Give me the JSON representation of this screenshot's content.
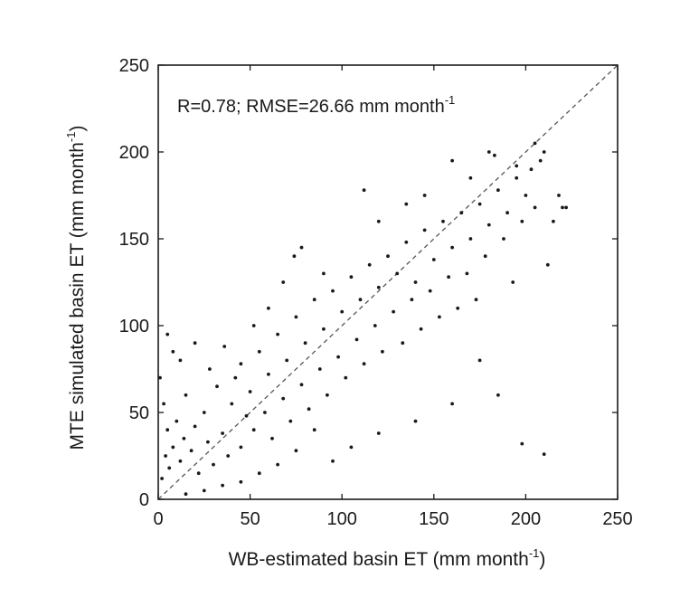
{
  "chart_data": {
    "type": "scatter",
    "xlabel": "WB-estimated basin ET (mm month",
    "xlabel_sup": "-1",
    "xlabel_close": ")",
    "ylabel": "MTE simulated basin ET (mm month",
    "ylabel_sup": "-1",
    "ylabel_close": ")",
    "annotation": "R=0.78;  RMSE=26.66 mm month",
    "annotation_sup": "-1",
    "xlim": [
      0,
      250
    ],
    "ylim": [
      0,
      250
    ],
    "x_ticks": [
      "0",
      "50",
      "100",
      "150",
      "200",
      "250"
    ],
    "y_ticks": [
      "0",
      "50",
      "100",
      "150",
      "200",
      "250"
    ],
    "reference_line": "1:1 dashed",
    "grid": false,
    "legend": "none",
    "point_color": "#1a1a1a",
    "series": [
      {
        "points": [
          [
            2,
            12
          ],
          [
            4,
            25
          ],
          [
            5,
            40
          ],
          [
            3,
            55
          ],
          [
            1,
            70
          ],
          [
            6,
            18
          ],
          [
            8,
            30
          ],
          [
            10,
            45
          ],
          [
            12,
            22
          ],
          [
            14,
            35
          ],
          [
            15,
            60
          ],
          [
            18,
            28
          ],
          [
            20,
            42
          ],
          [
            22,
            15
          ],
          [
            25,
            50
          ],
          [
            27,
            33
          ],
          [
            30,
            20
          ],
          [
            32,
            65
          ],
          [
            35,
            38
          ],
          [
            38,
            25
          ],
          [
            40,
            55
          ],
          [
            42,
            70
          ],
          [
            45,
            30
          ],
          [
            48,
            48
          ],
          [
            50,
            62
          ],
          [
            52,
            40
          ],
          [
            55,
            85
          ],
          [
            58,
            50
          ],
          [
            60,
            72
          ],
          [
            62,
            35
          ],
          [
            65,
            95
          ],
          [
            68,
            58
          ],
          [
            70,
            80
          ],
          [
            72,
            45
          ],
          [
            75,
            105
          ],
          [
            78,
            66
          ],
          [
            80,
            90
          ],
          [
            82,
            52
          ],
          [
            85,
            115
          ],
          [
            88,
            75
          ],
          [
            90,
            98
          ],
          [
            92,
            60
          ],
          [
            95,
            120
          ],
          [
            98,
            82
          ],
          [
            100,
            108
          ],
          [
            102,
            70
          ],
          [
            105,
            128
          ],
          [
            108,
            92
          ],
          [
            110,
            115
          ],
          [
            112,
            78
          ],
          [
            115,
            135
          ],
          [
            118,
            100
          ],
          [
            120,
            122
          ],
          [
            122,
            85
          ],
          [
            125,
            140
          ],
          [
            128,
            108
          ],
          [
            130,
            130
          ],
          [
            133,
            90
          ],
          [
            135,
            148
          ],
          [
            138,
            115
          ],
          [
            140,
            125
          ],
          [
            143,
            98
          ],
          [
            145,
            155
          ],
          [
            148,
            120
          ],
          [
            150,
            138
          ],
          [
            153,
            105
          ],
          [
            155,
            160
          ],
          [
            158,
            128
          ],
          [
            160,
            145
          ],
          [
            163,
            110
          ],
          [
            165,
            165
          ],
          [
            168,
            130
          ],
          [
            170,
            150
          ],
          [
            173,
            115
          ],
          [
            175,
            170
          ],
          [
            178,
            140
          ],
          [
            180,
            158
          ],
          [
            183,
            198
          ],
          [
            185,
            178
          ],
          [
            188,
            150
          ],
          [
            190,
            165
          ],
          [
            193,
            125
          ],
          [
            195,
            185
          ],
          [
            198,
            160
          ],
          [
            200,
            175
          ],
          [
            203,
            190
          ],
          [
            205,
            168
          ],
          [
            208,
            195
          ],
          [
            210,
            200
          ],
          [
            212,
            135
          ],
          [
            215,
            160
          ],
          [
            218,
            175
          ],
          [
            220,
            168
          ],
          [
            222,
            168
          ],
          [
            175,
            80
          ],
          [
            185,
            60
          ],
          [
            198,
            32
          ],
          [
            210,
            26
          ],
          [
            160,
            55
          ],
          [
            140,
            45
          ],
          [
            120,
            38
          ],
          [
            105,
            30
          ],
          [
            95,
            22
          ],
          [
            85,
            40
          ],
          [
            75,
            28
          ],
          [
            65,
            20
          ],
          [
            55,
            15
          ],
          [
            45,
            10
          ],
          [
            35,
            8
          ],
          [
            25,
            5
          ],
          [
            15,
            3
          ],
          [
            8,
            85
          ],
          [
            5,
            95
          ],
          [
            12,
            80
          ],
          [
            20,
            90
          ],
          [
            28,
            75
          ],
          [
            36,
            88
          ],
          [
            45,
            78
          ],
          [
            52,
            100
          ],
          [
            60,
            110
          ],
          [
            68,
            125
          ],
          [
            74,
            140
          ],
          [
            78,
            145
          ],
          [
            90,
            130
          ],
          [
            112,
            178
          ],
          [
            120,
            160
          ],
          [
            135,
            170
          ],
          [
            145,
            175
          ],
          [
            160,
            195
          ],
          [
            170,
            185
          ],
          [
            180,
            200
          ],
          [
            195,
            192
          ],
          [
            205,
            205
          ]
        ]
      }
    ]
  }
}
